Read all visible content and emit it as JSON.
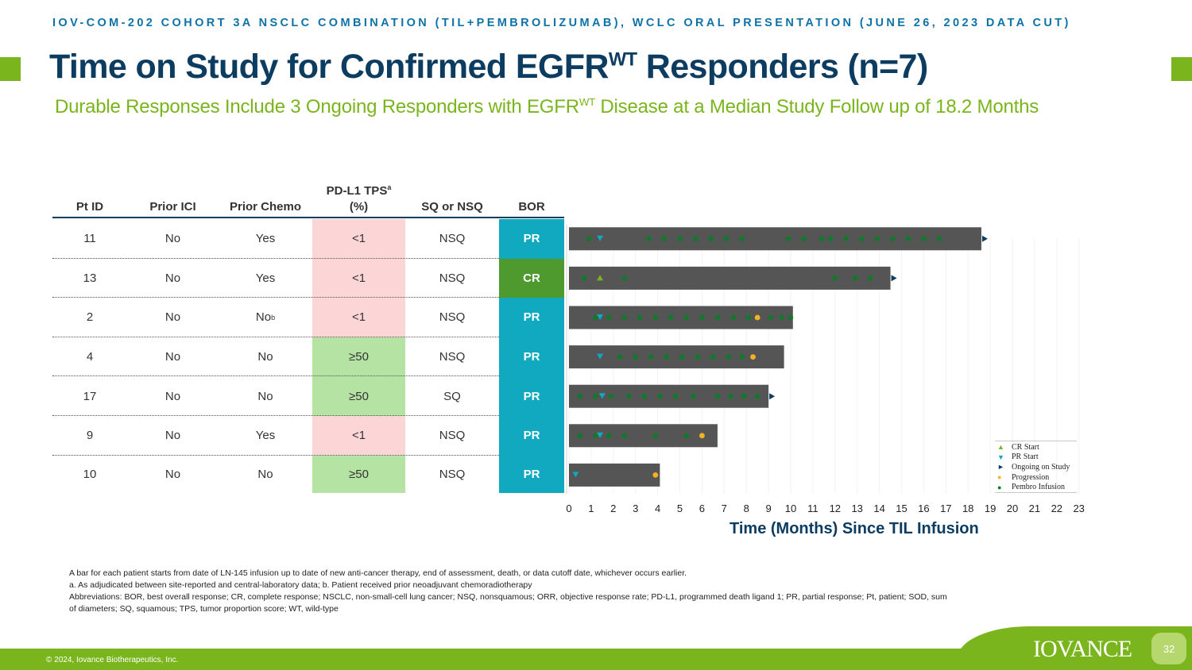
{
  "header": {
    "top_line": "IOV-COM-202 COHORT 3A NSCLC COMBINATION (TIL+PEMBROLIZUMAB), WCLC ORAL PRESENTATION (JUNE 26, 2023 DATA CUT)",
    "title_main": "Time on Study for Confirmed EGFR",
    "title_sup": "WT",
    "title_end": " Responders (n=7)",
    "subtitle_main": "Durable Responses Include 3 Ongoing Responders with EGFR",
    "subtitle_sup": "WT",
    "subtitle_end": " Disease at a Median Study Follow up of 18.2 Months"
  },
  "table": {
    "headers": {
      "pt_id": "Pt ID",
      "prior_ici": "Prior ICI",
      "prior_chemo": "Prior Chemo",
      "pdl1_line1": "PD-L1 TPS",
      "pdl1_sup": "a",
      "pdl1_line2": "(%)",
      "sq": "SQ or NSQ",
      "bor": "BOR"
    },
    "rows": [
      {
        "pt_id": "11",
        "prior_ici": "No",
        "prior_chemo": "Yes",
        "chemo_sup": "",
        "pdl1": "<1",
        "sq": "NSQ",
        "bor": "PR"
      },
      {
        "pt_id": "13",
        "prior_ici": "No",
        "prior_chemo": "Yes",
        "chemo_sup": "",
        "pdl1": "<1",
        "sq": "NSQ",
        "bor": "CR"
      },
      {
        "pt_id": "2",
        "prior_ici": "No",
        "prior_chemo": "No",
        "chemo_sup": "b",
        "pdl1": "<1",
        "sq": "NSQ",
        "bor": "PR"
      },
      {
        "pt_id": "4",
        "prior_ici": "No",
        "prior_chemo": "No",
        "chemo_sup": "",
        "pdl1": "≥50",
        "sq": "NSQ",
        "bor": "PR"
      },
      {
        "pt_id": "17",
        "prior_ici": "No",
        "prior_chemo": "No",
        "chemo_sup": "",
        "pdl1": "≥50",
        "sq": "SQ",
        "bor": "PR"
      },
      {
        "pt_id": "9",
        "prior_ici": "No",
        "prior_chemo": "Yes",
        "chemo_sup": "",
        "pdl1": "<1",
        "sq": "NSQ",
        "bor": "PR"
      },
      {
        "pt_id": "10",
        "prior_ici": "No",
        "prior_chemo": "No",
        "chemo_sup": "",
        "pdl1": "≥50",
        "sq": "NSQ",
        "bor": "PR"
      }
    ],
    "colors": {
      "pdl1_low": "#fcd5d6",
      "pdl1_high": "#b4e3a3",
      "bor_pr": "#10a9c0",
      "bor_cr": "#4f9a2e"
    }
  },
  "chart_data": {
    "type": "swimmer",
    "xlabel": "Time (Months) Since TIL Infusion",
    "xlim": [
      0,
      23
    ],
    "x_ticks": [
      0,
      1,
      2,
      3,
      4,
      5,
      6,
      7,
      8,
      9,
      10,
      11,
      12,
      13,
      14,
      15,
      16,
      17,
      18,
      19,
      20,
      21,
      22,
      23
    ],
    "grid": true,
    "legend_position": "bottom-right",
    "bar_color": "#555555",
    "series": [
      {
        "name": "CR Start",
        "marker": "triangle-up",
        "color": "#7ab51d"
      },
      {
        "name": "PR Start",
        "marker": "triangle-down",
        "color": "#10a9c0"
      },
      {
        "name": "Ongoing on Study",
        "marker": "triangle-right",
        "color": "#0d3c61"
      },
      {
        "name": "Progression",
        "marker": "circle",
        "color": "#f4b223"
      },
      {
        "name": "Pembro Infusion",
        "marker": "circle",
        "color": "#0e7a2a"
      }
    ],
    "patients": [
      {
        "pt_id": "11",
        "duration": 18.6,
        "ongoing": true,
        "cr_start": null,
        "pr_start": 1.4,
        "progression": null,
        "pembro": [
          0.9,
          3.6,
          4.3,
          5.0,
          5.7,
          6.4,
          7.1,
          7.8,
          9.9,
          10.6,
          11.4,
          11.8,
          12.5,
          13.2,
          13.9,
          14.6,
          15.3,
          16.0,
          16.7
        ]
      },
      {
        "pt_id": "13",
        "duration": 14.5,
        "ongoing": true,
        "cr_start": 1.4,
        "pr_start": null,
        "progression": null,
        "pembro": [
          0.7,
          2.5,
          12.0,
          12.9,
          13.6
        ]
      },
      {
        "pt_id": "2",
        "duration": 10.1,
        "ongoing": false,
        "cr_start": null,
        "pr_start": 1.4,
        "progression": 8.5,
        "pembro": [
          1.2,
          1.8,
          2.5,
          3.2,
          3.9,
          4.6,
          5.3,
          6.0,
          6.7,
          7.4,
          8.1,
          9.1,
          9.6,
          10.0
        ]
      },
      {
        "pt_id": "4",
        "duration": 9.7,
        "ongoing": false,
        "cr_start": null,
        "pr_start": 1.4,
        "progression": 8.3,
        "pembro": [
          2.3,
          3.0,
          3.7,
          4.4,
          5.1,
          5.8,
          6.5,
          7.2,
          7.8
        ]
      },
      {
        "pt_id": "17",
        "duration": 9.0,
        "ongoing": true,
        "cr_start": null,
        "pr_start": 1.5,
        "progression": null,
        "pembro": [
          0.5,
          1.2,
          1.9,
          2.7,
          3.4,
          4.1,
          4.8,
          5.6,
          6.7,
          7.3,
          7.9,
          8.5
        ]
      },
      {
        "pt_id": "9",
        "duration": 6.7,
        "ongoing": false,
        "cr_start": null,
        "pr_start": 1.4,
        "progression": 6.0,
        "pembro": [
          0.5,
          1.2,
          1.8,
          2.5,
          3.9,
          5.3
        ]
      },
      {
        "pt_id": "10",
        "duration": 4.1,
        "ongoing": false,
        "cr_start": null,
        "pr_start": 0.3,
        "progression": 3.9,
        "pembro": []
      }
    ]
  },
  "legend": [
    {
      "symbol": "▲",
      "color": "#7ab51d",
      "label": "CR Start"
    },
    {
      "symbol": "▼",
      "color": "#10a9c0",
      "label": "PR Start"
    },
    {
      "symbol": "►",
      "color": "#0d3c61",
      "label": "Ongoing on Study"
    },
    {
      "symbol": "●",
      "color": "#f4b223",
      "label": "Progression"
    },
    {
      "symbol": "●",
      "color": "#0e7a2a",
      "label": "Pembro Infusion"
    }
  ],
  "footnotes": {
    "line1": "A bar for each patient starts from date of LN-145 infusion up to date of new anti-cancer therapy, end of assessment, death, or data cutoff date, whichever occurs earlier.",
    "line2": "a. As adjudicated between site-reported and central-laboratory data; b. Patient received prior neoadjuvant chemoradiotherapy",
    "line3": "Abbreviations: BOR, best overall response; CR, complete response; NSCLC, non-small-cell lung cancer; NSQ, nonsquamous; ORR, objective response rate; PD-L1, programmed death ligand 1; PR, partial response; Pt, patient; SOD, sum of diameters; SQ, squamous; TPS, tumor proportion score; WT, wild-type"
  },
  "footer": {
    "copyright": "© 2024, Iovance Biotherapeutics, Inc.",
    "logo": "IOVANCE",
    "page_number": "32"
  }
}
